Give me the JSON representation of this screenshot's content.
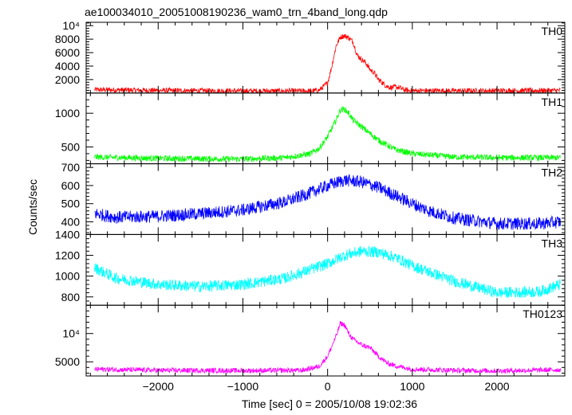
{
  "title": "ae100034010_20051008190236_wam0_trn_4band_long.qdp",
  "ylabel": "Counts/sec",
  "xlabel": "Time [sec] 0 = 2005/10/08 19:02:36",
  "chart_data": {
    "type": "line",
    "title": "ae100034010_20051008190236_wam0_trn_4band_long.qdp",
    "xlabel": "Time [sec] 0 = 2005/10/08 19:02:36",
    "ylabel": "Counts/sec",
    "xlim": [
      -2850,
      2800
    ],
    "xticks": [
      -2000,
      -1000,
      0,
      1000,
      2000
    ],
    "xtick_labels": [
      "−2000",
      "−1000",
      "0",
      "1000",
      "2000"
    ],
    "panels": [
      {
        "name": "TH0",
        "color": "#ff0000",
        "ylim": [
          0,
          10500
        ],
        "yticks": [
          2000,
          4000,
          6000,
          8000,
          10000
        ],
        "ytick_labels": [
          "2000",
          "4000",
          "6000",
          "8000",
          "10⁴"
        ],
        "x": [
          -2750,
          -2000,
          -1000,
          -400,
          -200,
          -100,
          0,
          50,
          100,
          150,
          200,
          250,
          300,
          350,
          400,
          450,
          500,
          550,
          600,
          650,
          700,
          750,
          800,
          850,
          900,
          950,
          1000,
          1200,
          2000,
          2750
        ],
        "y": [
          500,
          380,
          300,
          300,
          300,
          400,
          1500,
          4000,
          7000,
          8300,
          8500,
          8200,
          7600,
          5600,
          5000,
          4500,
          3500,
          3000,
          2000,
          1500,
          1000,
          800,
          900,
          800,
          500,
          380,
          350,
          340,
          330,
          380
        ],
        "noise": 400
      },
      {
        "name": "TH1",
        "color": "#00ff00",
        "ylim": [
          250,
          1300
        ],
        "yticks": [
          500,
          1000
        ],
        "ytick_labels": [
          "500",
          "1000"
        ],
        "x": [
          -2750,
          -2000,
          -1000,
          -500,
          -200,
          -100,
          0,
          100,
          150,
          200,
          250,
          300,
          400,
          500,
          600,
          800,
          1000,
          1500,
          2000,
          2750
        ],
        "y": [
          350,
          330,
          320,
          340,
          400,
          480,
          650,
          900,
          1050,
          1060,
          1000,
          900,
          800,
          700,
          600,
          460,
          400,
          350,
          340,
          340
        ],
        "noise": 45
      },
      {
        "name": "TH2",
        "color": "#0000ff",
        "ylim": [
          330,
          720
        ],
        "yticks": [
          400,
          500,
          600,
          700
        ],
        "ytick_labels": [
          "400",
          "500",
          "600",
          "700"
        ],
        "x": [
          -2750,
          -2500,
          -2000,
          -1500,
          -1000,
          -500,
          -200,
          0,
          200,
          400,
          600,
          800,
          1000,
          1200,
          1500,
          2000,
          2500,
          2750
        ],
        "y": [
          445,
          425,
          430,
          445,
          465,
          510,
          560,
          600,
          630,
          620,
          590,
          545,
          500,
          460,
          420,
          390,
          390,
          400
        ],
        "noise": 35
      },
      {
        "name": "TH3",
        "color": "#00ffff",
        "ylim": [
          720,
          1400
        ],
        "yticks": [
          800,
          1000,
          1200,
          1400
        ],
        "ytick_labels": [
          "800",
          "1000",
          "1200",
          "1400"
        ],
        "x": [
          -2750,
          -2500,
          -2000,
          -1500,
          -1000,
          -500,
          0,
          200,
          400,
          600,
          800,
          1000,
          1500,
          2000,
          2500,
          2750
        ],
        "y": [
          1080,
          980,
          920,
          900,
          920,
          980,
          1120,
          1200,
          1240,
          1230,
          1180,
          1100,
          950,
          840,
          850,
          920
        ],
        "noise": 55
      },
      {
        "name": "TH0123",
        "color": "#ff00ff",
        "ylim": [
          2500,
          15000
        ],
        "yticks": [
          5000,
          10000
        ],
        "ytick_labels": [
          "5000",
          "10⁴"
        ],
        "x": [
          -2750,
          -2000,
          -1000,
          -300,
          -100,
          0,
          100,
          150,
          200,
          250,
          300,
          400,
          500,
          600,
          700,
          800,
          900,
          1000,
          1500,
          2000,
          2750
        ],
        "y": [
          3700,
          3500,
          3450,
          3500,
          4200,
          6000,
          9500,
          11800,
          11500,
          10000,
          9000,
          8000,
          7500,
          6000,
          4800,
          4300,
          4000,
          3700,
          3500,
          3400,
          3600
        ],
        "noise": 450
      }
    ]
  }
}
